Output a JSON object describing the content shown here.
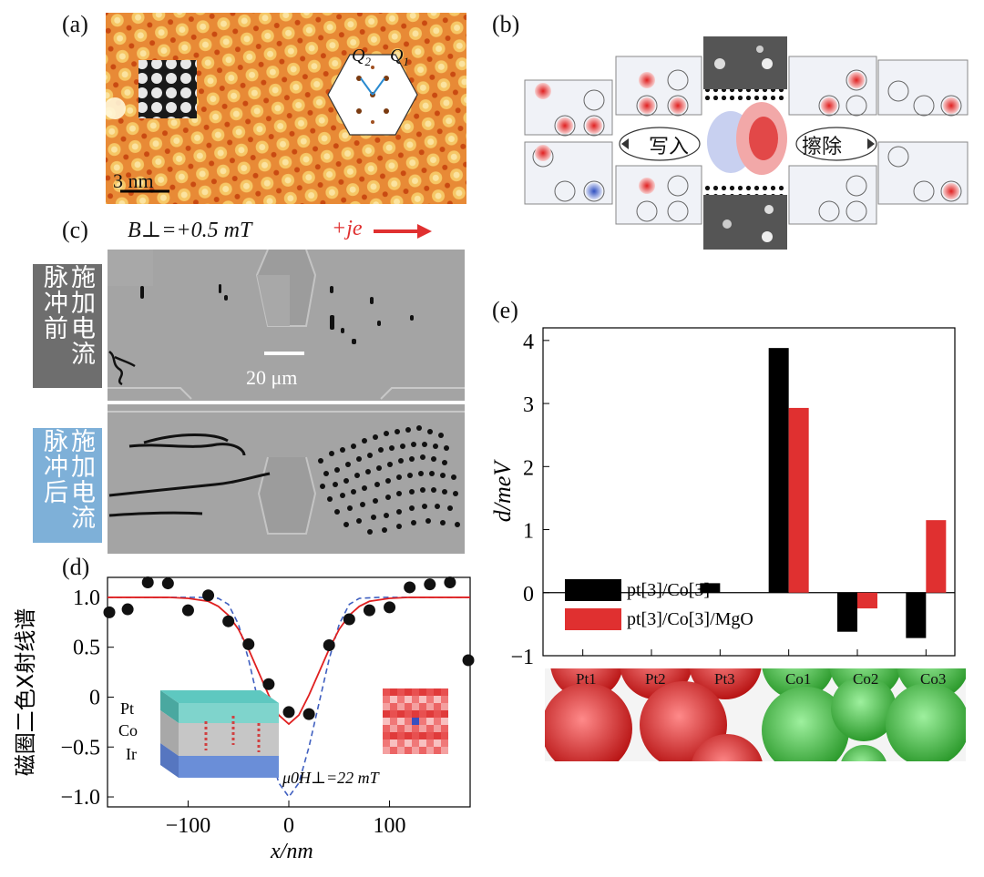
{
  "panels": {
    "a": {
      "label": "(a)",
      "scale_bar": "3 nm",
      "fft_label_q2": "Q",
      "fft_sub_q2": "2",
      "fft_label_q1": "Q",
      "fft_sub_q1": "1"
    },
    "b": {
      "label": "(b)",
      "write_label": "写入",
      "erase_label": "擦除"
    },
    "c": {
      "label": "(c)",
      "field_label": "B⊥=+0.5 mT",
      "current_label": "+je",
      "scale_bar": "20 μm",
      "row_before": "施加电流脉冲前",
      "row_after": "施加电流脉冲后",
      "colors": {
        "before_tag": "#6e6e6e",
        "after_tag": "#7eb0d8",
        "current_arrow": "#e03030"
      }
    },
    "d": {
      "label": "(d)",
      "inset_layers": [
        "Pt",
        "Co",
        "Ir"
      ]
    },
    "e": {
      "label": "(e)",
      "atom_labels": [
        "Pt1",
        "Pt2",
        "Pt3",
        "Co1",
        "Co2",
        "Co3"
      ]
    }
  },
  "chart_data": [
    {
      "type": "scatter",
      "panel": "d",
      "xlabel": "x/nm",
      "ylabel": "磁圈二色X射线谱",
      "xlim": [
        -180,
        180
      ],
      "ylim": [
        -1.1,
        1.2
      ],
      "xticks": [
        -100,
        0,
        100
      ],
      "yticks": [
        1.0,
        0.5,
        0,
        -0.5,
        -1.0
      ],
      "annotation": "μ0H⊥=22 mT",
      "series": [
        {
          "kind": "points",
          "x": [
            -180,
            -160,
            -140,
            -120,
            -100,
            -80,
            -60,
            -40,
            -20,
            0,
            20,
            40,
            60,
            80,
            100,
            120,
            140,
            160,
            180
          ],
          "y": [
            0.85,
            0.88,
            1.15,
            1.14,
            0.87,
            1.02,
            0.76,
            0.53,
            0.13,
            -0.15,
            -0.17,
            0.52,
            0.78,
            0.87,
            0.9,
            1.1,
            1.13,
            1.15,
            0.37
          ]
        },
        {
          "kind": "fit",
          "color": "#e02020",
          "x": [
            -180,
            -150,
            -120,
            -100,
            -80,
            -70,
            -60,
            -50,
            -40,
            -30,
            -20,
            -10,
            0,
            10,
            20,
            30,
            40,
            50,
            60,
            70,
            80,
            100,
            120,
            150,
            180
          ],
          "y": [
            1.0,
            1.0,
            1.0,
            0.99,
            0.96,
            0.91,
            0.82,
            0.68,
            0.48,
            0.25,
            0.02,
            -0.18,
            -0.27,
            -0.18,
            0.02,
            0.25,
            0.48,
            0.68,
            0.82,
            0.91,
            0.96,
            0.99,
            1.0,
            1.0,
            1.0
          ]
        },
        {
          "kind": "dashed",
          "color": "#4060c0",
          "x": [
            -180,
            -120,
            -90,
            -70,
            -60,
            -50,
            -40,
            -30,
            -20,
            -10,
            0,
            10,
            20,
            30,
            40,
            50,
            60,
            70,
            90,
            120,
            180
          ],
          "y": [
            1.0,
            1.0,
            1.0,
            0.99,
            0.93,
            0.73,
            0.38,
            -0.06,
            -0.5,
            -0.86,
            -1.0,
            -0.86,
            -0.5,
            -0.06,
            0.38,
            0.73,
            0.93,
            0.99,
            1.0,
            1.0,
            1.0
          ]
        }
      ]
    },
    {
      "type": "bar",
      "panel": "e",
      "categories": [
        "Pt1",
        "Pt2",
        "Pt3",
        "Co1",
        "Co2",
        "Co3"
      ],
      "ylabel": "d/meV",
      "ylim": [
        -1,
        4.2
      ],
      "yticks": [
        4,
        3,
        2,
        1,
        0,
        -1
      ],
      "legend_position": "bottom-left",
      "series": [
        {
          "name": "pt[3]/Co[3]",
          "color": "#000000",
          "values": [
            0,
            0,
            0.15,
            3.88,
            -0.62,
            -0.72
          ]
        },
        {
          "name": "pt[3]/Co[3]/MgO",
          "color": "#e03030",
          "values": [
            0,
            0,
            0,
            2.93,
            -0.25,
            1.15
          ]
        }
      ]
    }
  ]
}
